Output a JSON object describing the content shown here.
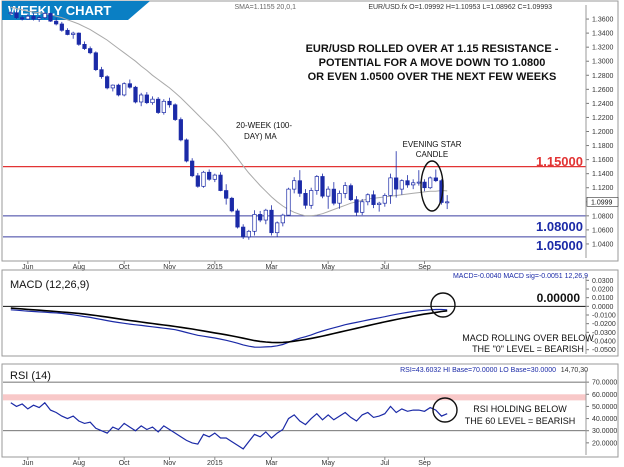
{
  "header": {
    "title": "WEEKLY CHART",
    "legend": "SMA=1.1155 20,0,1",
    "ohlc": "EUR/USD.fx O=1.09992 H=1.10953 L=1.08962 C=1.09993"
  },
  "colors": {
    "title_band": "#0a7fc4",
    "candle_up": "#ffffff",
    "candle_down": "#1b2aa7",
    "candle_outline": "#1b2aa7",
    "sma": "#a9a9a9",
    "resistance": "#e23434",
    "support": "#3a3fa0",
    "macd_line": "#1b2aa7",
    "signal_line": "#000000",
    "rsi_line": "#1b2aa7",
    "rsi_band": "#f6b6b6"
  },
  "annotations": {
    "headline_1": "EUR/USD ROLLED OVER AT 1.15 RESISTANCE -",
    "headline_2": "POTENTIAL FOR A MOVE DOWN TO 1.0800",
    "headline_3": "OR EVEN 1.0500 OVER THE NEXT FEW WEEKS",
    "ma_label_1": "20-WEEK (100-",
    "ma_label_2": "DAY) MA",
    "star_1": "EVENING STAR",
    "star_2": "CANDLE",
    "macd_note_1": "MACD ROLLING OVER BELOW",
    "macd_note_2": "THE \"0\" LEVEL = BEARISH",
    "rsi_note_1": "RSI HOLDING BELOW",
    "rsi_note_2": "THE 60 LEVEL = BEARISH"
  },
  "levels": {
    "resistance": "1.15000",
    "support_1": "1.08000",
    "support_2": "1.05000",
    "macd_zero": "0.00000",
    "current_price": "1.0999"
  },
  "macd_panel": {
    "title": "MACD (12,26,9)",
    "legend": "MACD=-0.0040 MACD sig=-0.0051 12,26,9"
  },
  "rsi_panel": {
    "title": "RSI (14)",
    "legend": "RSI=43.6032 HI Base=70.0000 LO Base=30.0000",
    "params": "14,70,30"
  },
  "chart_data": [
    {
      "type": "candlestick",
      "title": "WEEKLY CHART",
      "instrument": "EUR/USD",
      "ylim": [
        1.02,
        1.38
      ],
      "yticks": [
        1.36,
        1.34,
        1.32,
        1.3,
        1.28,
        1.26,
        1.24,
        1.22,
        1.2,
        1.18,
        1.16,
        1.14,
        1.12,
        1.1,
        1.08,
        1.06,
        1.04
      ],
      "x_labels": [
        "Jun",
        "Aug",
        "Oct",
        "Nov",
        "2015",
        "Mar",
        "May",
        "Jul",
        "Sep"
      ],
      "horizontal_lines": [
        1.15,
        1.08,
        1.05
      ],
      "ohlc": [
        [
          1.3678,
          1.371,
          1.365,
          1.369
        ],
        [
          1.369,
          1.372,
          1.36,
          1.362
        ],
        [
          1.362,
          1.365,
          1.358,
          1.36
        ],
        [
          1.36,
          1.367,
          1.359,
          1.364
        ],
        [
          1.364,
          1.368,
          1.358,
          1.36
        ],
        [
          1.36,
          1.364,
          1.356,
          1.362
        ],
        [
          1.362,
          1.37,
          1.36,
          1.368
        ],
        [
          1.368,
          1.369,
          1.356,
          1.357
        ],
        [
          1.357,
          1.362,
          1.351,
          1.353
        ],
        [
          1.353,
          1.356,
          1.342,
          1.344
        ],
        [
          1.344,
          1.347,
          1.337,
          1.338
        ],
        [
          1.338,
          1.342,
          1.332,
          1.34
        ],
        [
          1.34,
          1.341,
          1.322,
          1.324
        ],
        [
          1.324,
          1.328,
          1.316,
          1.318
        ],
        [
          1.318,
          1.321,
          1.31,
          1.312
        ],
        [
          1.312,
          1.314,
          1.286,
          1.288
        ],
        [
          1.288,
          1.292,
          1.275,
          1.278
        ],
        [
          1.278,
          1.28,
          1.26,
          1.262
        ],
        [
          1.262,
          1.267,
          1.257,
          1.266
        ],
        [
          1.266,
          1.268,
          1.25,
          1.252
        ],
        [
          1.252,
          1.27,
          1.25,
          1.268
        ],
        [
          1.268,
          1.274,
          1.261,
          1.263
        ],
        [
          1.263,
          1.265,
          1.24,
          1.242
        ],
        [
          1.242,
          1.255,
          1.236,
          1.252
        ],
        [
          1.252,
          1.256,
          1.239,
          1.241
        ],
        [
          1.241,
          1.25,
          1.238,
          1.246
        ],
        [
          1.246,
          1.249,
          1.225,
          1.227
        ],
        [
          1.227,
          1.246,
          1.224,
          1.243
        ],
        [
          1.243,
          1.248,
          1.234,
          1.238
        ],
        [
          1.238,
          1.24,
          1.215,
          1.217
        ],
        [
          1.217,
          1.22,
          1.186,
          1.188
        ],
        [
          1.188,
          1.19,
          1.156,
          1.158
        ],
        [
          1.158,
          1.162,
          1.135,
          1.137
        ],
        [
          1.137,
          1.141,
          1.12,
          1.122
        ],
        [
          1.122,
          1.144,
          1.12,
          1.142
        ],
        [
          1.142,
          1.146,
          1.13,
          1.132
        ],
        [
          1.132,
          1.14,
          1.128,
          1.138
        ],
        [
          1.138,
          1.142,
          1.115,
          1.116
        ],
        [
          1.116,
          1.125,
          1.096,
          1.105
        ],
        [
          1.105,
          1.107,
          1.085,
          1.087
        ],
        [
          1.087,
          1.09,
          1.062,
          1.064
        ],
        [
          1.064,
          1.068,
          1.047,
          1.05
        ],
        [
          1.05,
          1.06,
          1.046,
          1.058
        ],
        [
          1.058,
          1.088,
          1.052,
          1.082
        ],
        [
          1.082,
          1.087,
          1.071,
          1.074
        ],
        [
          1.074,
          1.09,
          1.068,
          1.088
        ],
        [
          1.088,
          1.095,
          1.052,
          1.056
        ],
        [
          1.056,
          1.072,
          1.05,
          1.07
        ],
        [
          1.07,
          1.083,
          1.065,
          1.081
        ],
        [
          1.081,
          1.12,
          1.08,
          1.118
        ],
        [
          1.118,
          1.135,
          1.112,
          1.13
        ],
        [
          1.13,
          1.145,
          1.107,
          1.112
        ],
        [
          1.112,
          1.118,
          1.09,
          1.095
        ],
        [
          1.095,
          1.12,
          1.09,
          1.116
        ],
        [
          1.116,
          1.138,
          1.11,
          1.136
        ],
        [
          1.136,
          1.14,
          1.105,
          1.108
        ],
        [
          1.108,
          1.122,
          1.09,
          1.118
        ],
        [
          1.118,
          1.128,
          1.095,
          1.098
        ],
        [
          1.098,
          1.116,
          1.09,
          1.112
        ],
        [
          1.112,
          1.128,
          1.105,
          1.123
        ],
        [
          1.123,
          1.126,
          1.101,
          1.103
        ],
        [
          1.103,
          1.108,
          1.08,
          1.085
        ],
        [
          1.085,
          1.104,
          1.081,
          1.1
        ],
        [
          1.1,
          1.112,
          1.095,
          1.11
        ],
        [
          1.11,
          1.116,
          1.091,
          1.096
        ],
        [
          1.096,
          1.1,
          1.086,
          1.098
        ],
        [
          1.098,
          1.112,
          1.093,
          1.109
        ],
        [
          1.109,
          1.14,
          1.097,
          1.134
        ],
        [
          1.134,
          1.172,
          1.106,
          1.118
        ],
        [
          1.118,
          1.132,
          1.11,
          1.13
        ],
        [
          1.13,
          1.138,
          1.12,
          1.124
        ],
        [
          1.124,
          1.132,
          1.118,
          1.127
        ],
        [
          1.127,
          1.145,
          1.123,
          1.128
        ],
        [
          1.128,
          1.132,
          1.115,
          1.12
        ],
        [
          1.12,
          1.136,
          1.118,
          1.134
        ],
        [
          1.134,
          1.146,
          1.128,
          1.13
        ],
        [
          1.13,
          1.132,
          1.096,
          1.099
        ],
        [
          1.0999,
          1.1095,
          1.0896,
          1.0999
        ]
      ],
      "sma_20": [
        1.377,
        1.375,
        1.373,
        1.371,
        1.37,
        1.369,
        1.368,
        1.366,
        1.364,
        1.362,
        1.359,
        1.356,
        1.353,
        1.349,
        1.345,
        1.34,
        1.335,
        1.33,
        1.324,
        1.318,
        1.312,
        1.306,
        1.3,
        1.293,
        1.287,
        1.28,
        1.274,
        1.268,
        1.262,
        1.255,
        1.248,
        1.24,
        1.232,
        1.224,
        1.216,
        1.208,
        1.2,
        1.191,
        1.182,
        1.172,
        1.162,
        1.151,
        1.141,
        1.132,
        1.123,
        1.115,
        1.107,
        1.1,
        1.094,
        1.089,
        1.085,
        1.082,
        1.08,
        1.08,
        1.081,
        1.083,
        1.086,
        1.089,
        1.092,
        1.095,
        1.098,
        1.1,
        1.102,
        1.104,
        1.105,
        1.106,
        1.107,
        1.108,
        1.109,
        1.11,
        1.111,
        1.112,
        1.113,
        1.114,
        1.115,
        1.115,
        1.116,
        1.1155
      ]
    },
    {
      "type": "line",
      "title": "MACD (12,26,9)",
      "ylim": [
        -0.055,
        0.035
      ],
      "yticks": [
        0.03,
        0.02,
        0.01,
        0.0,
        -0.01,
        -0.02,
        -0.03,
        -0.04,
        -0.05
      ],
      "x_labels": [
        "Jun",
        "Aug",
        "Oct",
        "Nov",
        "2015",
        "Mar",
        "May",
        "Jul",
        "Sep"
      ],
      "series": [
        {
          "name": "MACD",
          "values": [
            -0.004,
            -0.0045,
            -0.005,
            -0.0056,
            -0.006,
            -0.0064,
            -0.0068,
            -0.0072,
            -0.0076,
            -0.0082,
            -0.009,
            -0.0098,
            -0.0108,
            -0.0118,
            -0.0128,
            -0.014,
            -0.0152,
            -0.0165,
            -0.0176,
            -0.0187,
            -0.0196,
            -0.0205,
            -0.0213,
            -0.022,
            -0.0228,
            -0.0236,
            -0.0244,
            -0.0252,
            -0.026,
            -0.027,
            -0.0285,
            -0.0302,
            -0.0318,
            -0.0334,
            -0.0345,
            -0.0355,
            -0.0365,
            -0.0378,
            -0.0392,
            -0.0408,
            -0.0425,
            -0.0445,
            -0.046,
            -0.047,
            -0.0472,
            -0.0468,
            -0.0465,
            -0.0455,
            -0.044,
            -0.0415,
            -0.039,
            -0.0368,
            -0.035,
            -0.033,
            -0.0305,
            -0.0285,
            -0.0265,
            -0.0248,
            -0.023,
            -0.0212,
            -0.0198,
            -0.0185,
            -0.0172,
            -0.0158,
            -0.0145,
            -0.0132,
            -0.012,
            -0.0105,
            -0.0092,
            -0.008,
            -0.007,
            -0.006,
            -0.0052,
            -0.0046,
            -0.004,
            -0.0036,
            -0.0036,
            -0.004
          ]
        },
        {
          "name": "MACD sig",
          "values": [
            -0.002,
            -0.0025,
            -0.003,
            -0.0035,
            -0.004,
            -0.0045,
            -0.005,
            -0.0055,
            -0.006,
            -0.0065,
            -0.007,
            -0.0076,
            -0.0082,
            -0.009,
            -0.0098,
            -0.0106,
            -0.0115,
            -0.0124,
            -0.0134,
            -0.0144,
            -0.0154,
            -0.0163,
            -0.0172,
            -0.0181,
            -0.019,
            -0.0198,
            -0.0207,
            -0.0215,
            -0.0224,
            -0.0233,
            -0.0242,
            -0.0252,
            -0.0262,
            -0.0273,
            -0.0284,
            -0.0295,
            -0.0306,
            -0.0317,
            -0.0329,
            -0.0341,
            -0.0354,
            -0.0368,
            -0.0382,
            -0.0395,
            -0.0405,
            -0.0412,
            -0.0416,
            -0.0418,
            -0.0416,
            -0.041,
            -0.0402,
            -0.0392,
            -0.0382,
            -0.037,
            -0.0357,
            -0.0343,
            -0.0328,
            -0.0313,
            -0.0298,
            -0.0283,
            -0.0268,
            -0.0253,
            -0.0238,
            -0.0223,
            -0.0208,
            -0.0194,
            -0.018,
            -0.0166,
            -0.0152,
            -0.0139,
            -0.0126,
            -0.0113,
            -0.0101,
            -0.009,
            -0.008,
            -0.007,
            -0.006,
            -0.0051
          ]
        }
      ],
      "horizontal_lines": [
        0.0
      ]
    },
    {
      "type": "line",
      "title": "RSI (14)",
      "ylim": [
        10,
        80
      ],
      "yticks": [
        70,
        60,
        50,
        40,
        30,
        20
      ],
      "x_labels": [
        "Jun",
        "Aug",
        "Oct",
        "Nov",
        "2015",
        "Mar",
        "May",
        "Jul",
        "Sep"
      ],
      "series": [
        {
          "name": "RSI",
          "values": [
            53,
            50,
            52,
            48,
            51,
            49,
            53,
            47,
            45,
            42,
            40,
            42,
            38,
            36,
            37,
            32,
            30,
            28,
            33,
            31,
            36,
            33,
            30,
            34,
            31,
            33,
            29,
            34,
            31,
            28,
            25,
            22,
            20,
            19,
            27,
            25,
            28,
            24,
            24,
            21,
            18,
            15,
            21,
            27,
            25,
            29,
            24,
            28,
            31,
            40,
            43,
            38,
            35,
            40,
            44,
            39,
            43,
            39,
            42,
            45,
            41,
            38,
            43,
            45,
            41,
            42,
            44,
            50,
            45,
            48,
            46,
            47,
            47,
            46,
            49,
            47,
            42,
            44
          ]
        }
      ],
      "horizontal_lines": [
        70,
        30
      ],
      "band": [
        55,
        60
      ]
    }
  ]
}
